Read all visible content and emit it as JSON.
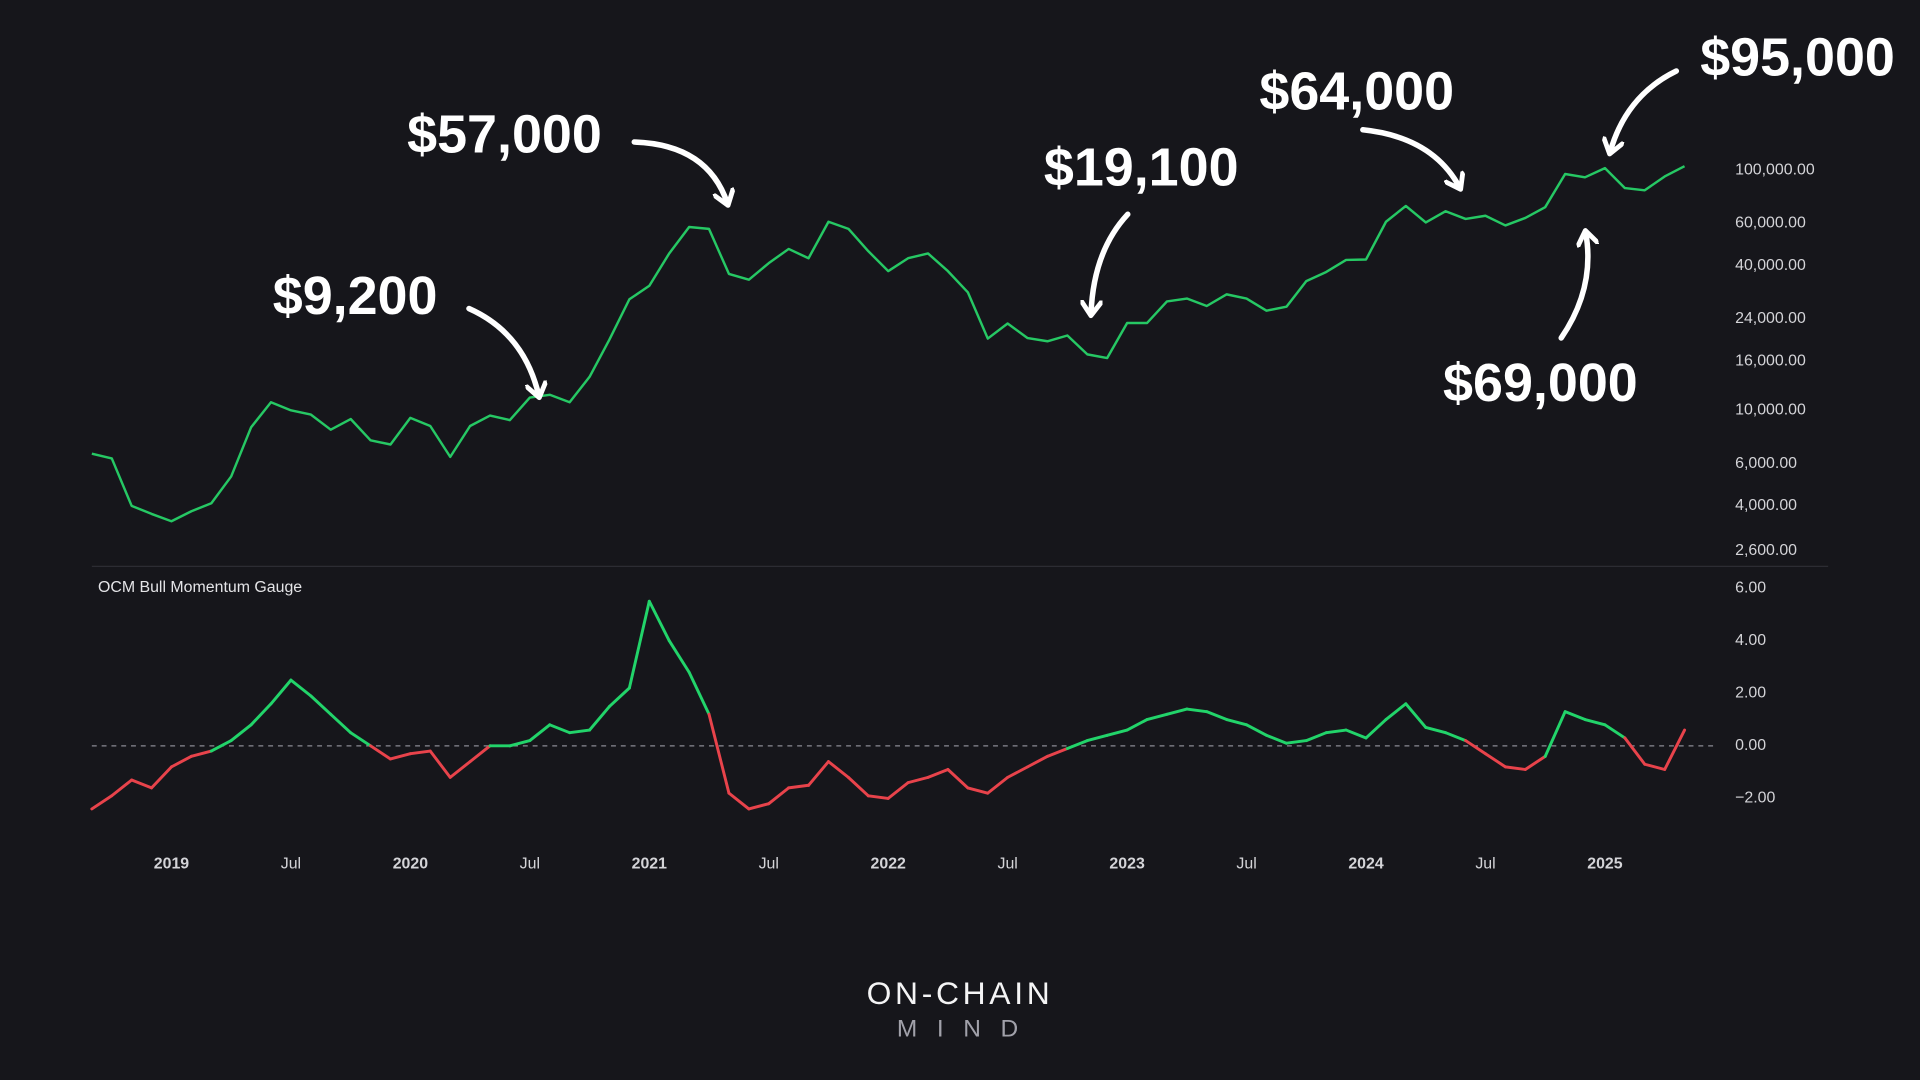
{
  "chart_data": [
    {
      "type": "line",
      "log_scale": true,
      "color": "#26c864",
      "x": [
        "2018-09",
        "2018-10",
        "2018-11",
        "2018-12",
        "2019-01",
        "2019-02",
        "2019-03",
        "2019-04",
        "2019-05",
        "2019-06",
        "2019-07",
        "2019-08",
        "2019-09",
        "2019-10",
        "2019-11",
        "2019-12",
        "2020-01",
        "2020-02",
        "2020-03",
        "2020-04",
        "2020-05",
        "2020-06",
        "2020-07",
        "2020-08",
        "2020-09",
        "2020-10",
        "2020-11",
        "2020-12",
        "2021-01",
        "2021-02",
        "2021-03",
        "2021-04",
        "2021-05",
        "2021-06",
        "2021-07",
        "2021-08",
        "2021-09",
        "2021-10",
        "2021-11",
        "2021-12",
        "2022-01",
        "2022-02",
        "2022-03",
        "2022-04",
        "2022-05",
        "2022-06",
        "2022-07",
        "2022-08",
        "2022-09",
        "2022-10",
        "2022-11",
        "2022-12",
        "2023-01",
        "2023-02",
        "2023-03",
        "2023-04",
        "2023-05",
        "2023-06",
        "2023-07",
        "2023-08",
        "2023-09",
        "2023-10",
        "2023-11",
        "2023-12",
        "2024-01",
        "2024-02",
        "2024-03",
        "2024-04",
        "2024-05",
        "2024-06",
        "2024-07",
        "2024-08",
        "2024-09",
        "2024-10",
        "2024-11",
        "2024-12",
        "2025-01",
        "2025-02",
        "2025-03",
        "2025-04",
        "2025-05"
      ],
      "values": [
        6600,
        6300,
        4000,
        3700,
        3450,
        3800,
        4100,
        5300,
        8500,
        10800,
        10000,
        9600,
        8300,
        9200,
        7500,
        7200,
        9300,
        8600,
        6400,
        8600,
        9500,
        9100,
        11300,
        11600,
        10800,
        13800,
        19700,
        29000,
        33000,
        45000,
        58000,
        57000,
        37000,
        35000,
        41000,
        47000,
        43000,
        61000,
        57000,
        46000,
        38000,
        43000,
        45000,
        38000,
        31000,
        19900,
        23000,
        20000,
        19400,
        20500,
        17100,
        16500,
        23100,
        23100,
        28400,
        29200,
        27200,
        30400,
        29200,
        26000,
        27000,
        34500,
        37700,
        42300,
        42500,
        61000,
        71000,
        60600,
        67500,
        62700,
        64600,
        58900,
        63300,
        70200,
        96400,
        93400,
        102000,
        84300,
        82500,
        94200,
        104000
      ],
      "xlim": [
        "2018-09",
        "2025-06"
      ],
      "ylim": [
        2200,
        120000
      ],
      "yticks": [
        {
          "value": 100000,
          "label": "100,000.00"
        },
        {
          "value": 60000,
          "label": "60,000.00"
        },
        {
          "value": 40000,
          "label": "40,000.00"
        },
        {
          "value": 24000,
          "label": "24,000.00"
        },
        {
          "value": 16000,
          "label": "16,000.00"
        },
        {
          "value": 10000,
          "label": "10,000.00"
        },
        {
          "value": 6000,
          "label": "6,000.00"
        },
        {
          "value": 4000,
          "label": "4,000.00"
        },
        {
          "value": 2600,
          "label": "2,600.00"
        }
      ],
      "annotations": [
        "$9,200",
        "$57,000",
        "$19,100",
        "$64,000",
        "$95,000",
        "$69,000"
      ]
    },
    {
      "type": "line",
      "title": "OCM Bull Momentum Gauge",
      "positive_color": "#22d46a",
      "negative_color": "#e8434b",
      "zero_line": "dashed",
      "x": [
        "2018-09",
        "2018-10",
        "2018-11",
        "2018-12",
        "2019-01",
        "2019-02",
        "2019-03",
        "2019-04",
        "2019-05",
        "2019-06",
        "2019-07",
        "2019-08",
        "2019-09",
        "2019-10",
        "2019-11",
        "2019-12",
        "2020-01",
        "2020-02",
        "2020-03",
        "2020-04",
        "2020-05",
        "2020-06",
        "2020-07",
        "2020-08",
        "2020-09",
        "2020-10",
        "2020-11",
        "2020-12",
        "2021-01",
        "2021-02",
        "2021-03",
        "2021-04",
        "2021-05",
        "2021-06",
        "2021-07",
        "2021-08",
        "2021-09",
        "2021-10",
        "2021-11",
        "2021-12",
        "2022-01",
        "2022-02",
        "2022-03",
        "2022-04",
        "2022-05",
        "2022-06",
        "2022-07",
        "2022-08",
        "2022-09",
        "2022-10",
        "2022-11",
        "2022-12",
        "2023-01",
        "2023-02",
        "2023-03",
        "2023-04",
        "2023-05",
        "2023-06",
        "2023-07",
        "2023-08",
        "2023-09",
        "2023-10",
        "2023-11",
        "2023-12",
        "2024-01",
        "2024-02",
        "2024-03",
        "2024-04",
        "2024-05",
        "2024-06",
        "2024-07",
        "2024-08",
        "2024-09",
        "2024-10",
        "2024-11",
        "2024-12",
        "2025-01",
        "2025-02",
        "2025-03",
        "2025-04",
        "2025-05"
      ],
      "values": [
        -2.4,
        -1.9,
        -1.3,
        -1.6,
        -0.8,
        -0.4,
        -0.2,
        0.2,
        0.8,
        1.6,
        2.5,
        1.9,
        1.2,
        0.5,
        0.0,
        -0.5,
        -0.3,
        -0.2,
        -1.2,
        -0.6,
        0.0,
        0.0,
        0.2,
        0.8,
        0.5,
        0.6,
        1.5,
        2.2,
        5.5,
        4.0,
        2.8,
        1.2,
        -1.8,
        -2.4,
        -2.2,
        -1.6,
        -1.5,
        -0.6,
        -1.2,
        -1.9,
        -2.0,
        -1.4,
        -1.2,
        -0.9,
        -1.6,
        -1.8,
        -1.2,
        -0.8,
        -0.4,
        -0.1,
        0.2,
        0.4,
        0.6,
        1.0,
        1.2,
        1.4,
        1.3,
        1.0,
        0.8,
        0.4,
        0.1,
        0.2,
        0.5,
        0.6,
        0.3,
        1.0,
        1.6,
        0.7,
        0.5,
        0.2,
        -0.3,
        -0.8,
        -0.9,
        -0.4,
        1.3,
        1.0,
        0.8,
        0.3,
        -0.7,
        -0.9,
        0.6
      ],
      "xlim": [
        "2018-09",
        "2025-06"
      ],
      "ylim": [
        -3,
        6.2
      ],
      "yticks": [
        {
          "value": 6,
          "label": "6.00"
        },
        {
          "value": 4,
          "label": "4.00"
        },
        {
          "value": 2,
          "label": "2.00"
        },
        {
          "value": 0,
          "label": "0.00"
        },
        {
          "value": -2,
          "label": "−2.00"
        }
      ],
      "xticks": [
        {
          "value": "2019-01",
          "label": "2019"
        },
        {
          "value": "2019-07",
          "label": "Jul"
        },
        {
          "value": "2020-01",
          "label": "2020"
        },
        {
          "value": "2020-07",
          "label": "Jul"
        },
        {
          "value": "2021-01",
          "label": "2021"
        },
        {
          "value": "2021-07",
          "label": "Jul"
        },
        {
          "value": "2022-01",
          "label": "2022"
        },
        {
          "value": "2022-07",
          "label": "Jul"
        },
        {
          "value": "2023-01",
          "label": "2023"
        },
        {
          "value": "2023-07",
          "label": "Jul"
        },
        {
          "value": "2024-01",
          "label": "2024"
        },
        {
          "value": "2024-07",
          "label": "Jul"
        },
        {
          "value": "2025-01",
          "label": "2025"
        }
      ]
    }
  ],
  "brand": {
    "line1": "ON-CHAIN",
    "line2": "MIND"
  }
}
